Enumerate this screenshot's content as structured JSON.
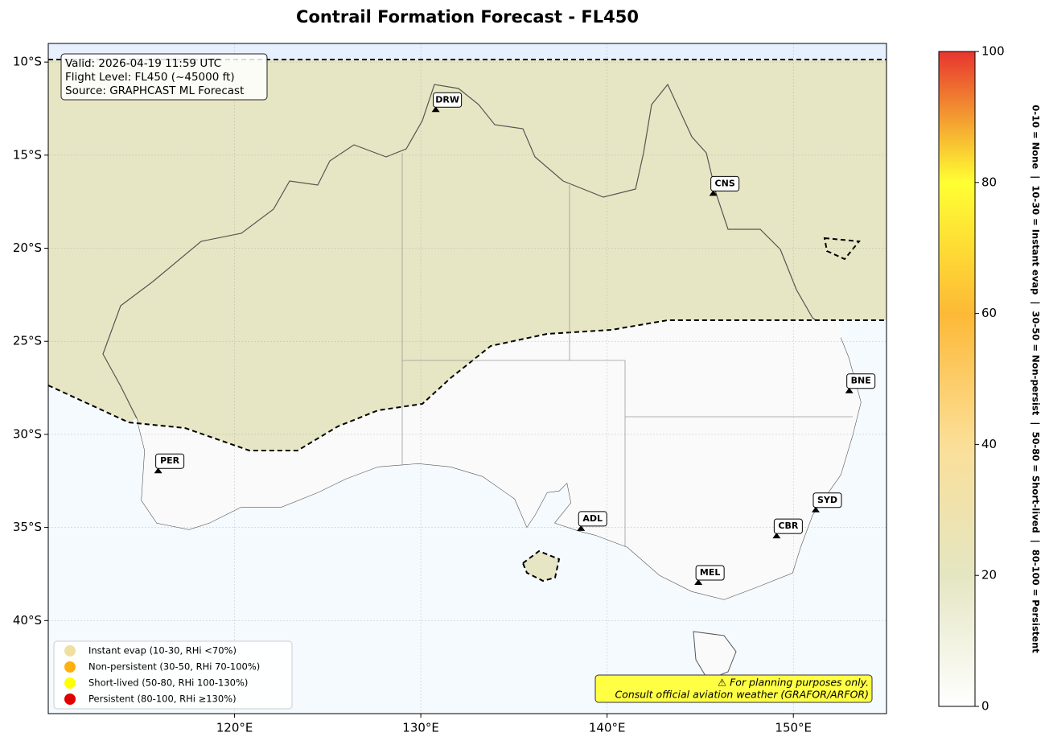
{
  "title": "Contrail Formation Forecast - FL450",
  "info": [
    "Valid: 2026-04-19 11:59 UTC",
    "Flight Level: FL450 (~45000 ft)",
    "Source: GRAPHCAST ML Forecast"
  ],
  "map": {
    "xlim": [
      110,
      155
    ],
    "ylim": [
      -45,
      -9
    ],
    "xticks": [
      {
        "value": 120,
        "label": "120°E"
      },
      {
        "value": 130,
        "label": "130°E"
      },
      {
        "value": 140,
        "label": "140°E"
      },
      {
        "value": 150,
        "label": "150°E"
      }
    ],
    "yticks": [
      {
        "value": -10,
        "label": "10°S"
      },
      {
        "value": -15,
        "label": "15°S"
      },
      {
        "value": -20,
        "label": "20°S"
      },
      {
        "value": -25,
        "label": "25°S"
      },
      {
        "value": -30,
        "label": "30°S"
      },
      {
        "value": -35,
        "label": "35°S"
      },
      {
        "value": -40,
        "label": "40°S"
      }
    ],
    "grid": true,
    "cities": [
      {
        "name": "DRW",
        "lon": 130.8,
        "lat": -12.6
      },
      {
        "name": "CNS",
        "lon": 145.7,
        "lat": -17.1
      },
      {
        "name": "BNE",
        "lon": 153.0,
        "lat": -27.7
      },
      {
        "name": "PER",
        "lon": 115.9,
        "lat": -32.0
      },
      {
        "name": "ADL",
        "lon": 138.6,
        "lat": -35.1
      },
      {
        "name": "SYD",
        "lon": 151.2,
        "lat": -34.1
      },
      {
        "name": "CBR",
        "lon": 149.1,
        "lat": -35.5
      },
      {
        "name": "MEL",
        "lon": 144.9,
        "lat": -38.0
      }
    ]
  },
  "legend": [
    {
      "name": "Instant evap (10-30, RHi <70%)",
      "color": "#f0e0a0"
    },
    {
      "name": "Non-persistent (30-50, RHi 70-100%)",
      "color": "#ffb010"
    },
    {
      "name": "Short-lived (50-80, RHi 100-130%)",
      "color": "#ffff00"
    },
    {
      "name": "Persistent (80-100, RHi ≥130%)",
      "color": "#e00000"
    }
  ],
  "warning": [
    "⚠ For planning purposes only.",
    "Consult official aviation weather (GRAFOR/ARFOR)"
  ],
  "colorbar": {
    "lim": [
      0,
      100
    ],
    "ticks": [
      0,
      20,
      40,
      60,
      80,
      100
    ],
    "label": "0-10 = None  |  10-30 = Instant evap  |  30-50 = Non-persist  |  50-80 = Short-lived  |  80-100 = Persistent"
  }
}
